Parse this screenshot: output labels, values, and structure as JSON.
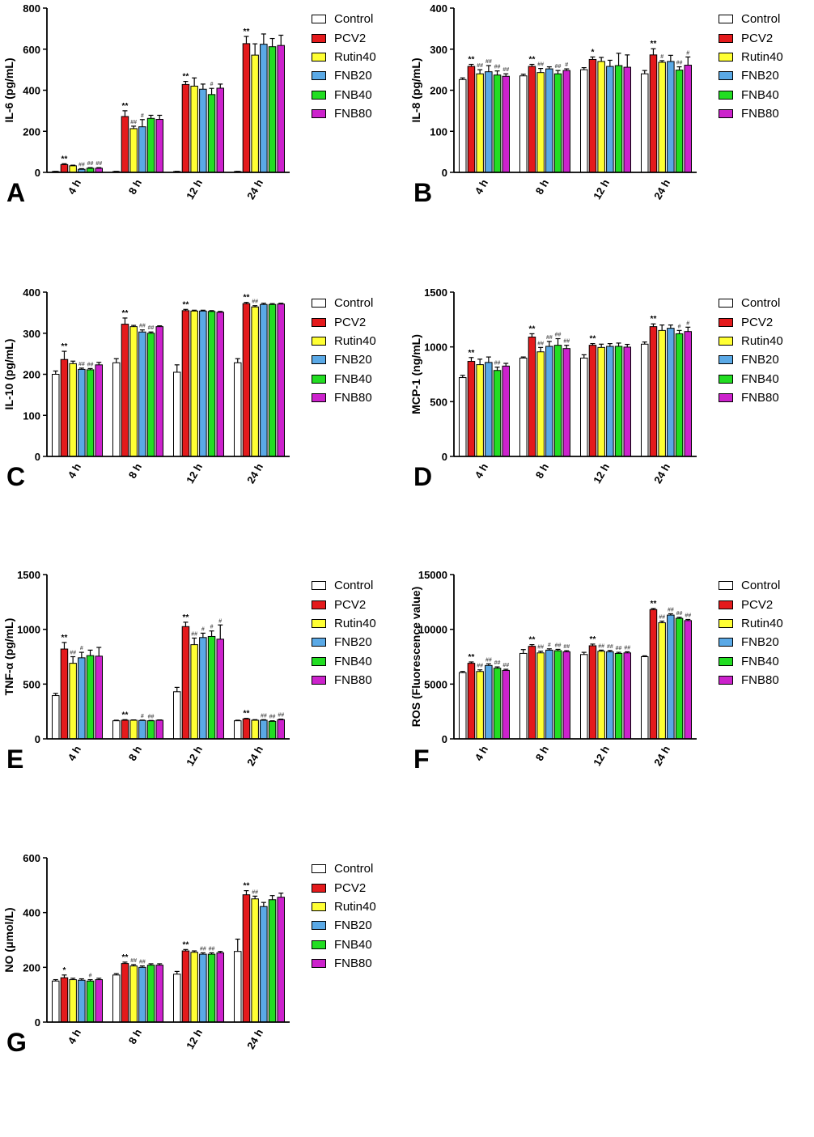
{
  "legend": {
    "groups": [
      "Control",
      "PCV2",
      "Rutin40",
      "FNB20",
      "FNB40",
      "FNB80"
    ],
    "colors": [
      "#ffffff",
      "#e41a1c",
      "#ffff33",
      "#5aa9e6",
      "#22dd22",
      "#cc22cc"
    ]
  },
  "chart_data": [
    {
      "type": "bar",
      "panel_label": "A",
      "ylabel": "IL-6 (pg/mL)",
      "ylim": [
        0,
        800
      ],
      "yticks": [
        0,
        200,
        400,
        600,
        800
      ],
      "categories": [
        "4 h",
        "8 h",
        "12 h",
        "24 h"
      ],
      "series": [
        {
          "name": "Control",
          "values": [
            4,
            4,
            4,
            4
          ],
          "errors": [
            1,
            1,
            1,
            1
          ],
          "marks": [
            "",
            "",
            "",
            ""
          ]
        },
        {
          "name": "PCV2",
          "values": [
            38,
            272,
            428,
            627
          ],
          "errors": [
            4,
            28,
            15,
            35
          ],
          "marks": [
            "**",
            "**",
            "**",
            "**"
          ]
        },
        {
          "name": "Rutin40",
          "values": [
            32,
            213,
            420,
            571
          ],
          "errors": [
            3,
            12,
            40,
            55
          ],
          "marks": [
            "",
            "##",
            "",
            ""
          ]
        },
        {
          "name": "FNB20",
          "values": [
            15,
            222,
            405,
            624
          ],
          "errors": [
            3,
            35,
            25,
            50
          ],
          "marks": [
            "##",
            "#",
            "",
            ""
          ]
        },
        {
          "name": "FNB40",
          "values": [
            20,
            263,
            379,
            612
          ],
          "errors": [
            3,
            15,
            30,
            40
          ],
          "marks": [
            "##",
            "",
            "#",
            ""
          ]
        },
        {
          "name": "FNB80",
          "values": [
            20,
            258,
            410,
            618
          ],
          "errors": [
            3,
            20,
            20,
            50
          ],
          "marks": [
            "##",
            "",
            "",
            ""
          ]
        }
      ]
    },
    {
      "type": "bar",
      "panel_label": "B",
      "ylabel": "IL-8 (pg/mL)",
      "ylim": [
        0,
        400
      ],
      "yticks": [
        0,
        100,
        200,
        300,
        400
      ],
      "categories": [
        "4 h",
        "8 h",
        "12 h",
        "24 h"
      ],
      "series": [
        {
          "name": "Control",
          "values": [
            226,
            235,
            250,
            240
          ],
          "errors": [
            4,
            4,
            5,
            8
          ],
          "marks": [
            "",
            "",
            "",
            ""
          ]
        },
        {
          "name": "PCV2",
          "values": [
            258,
            258,
            275,
            286
          ],
          "errors": [
            5,
            5,
            6,
            15
          ],
          "marks": [
            "**",
            "**",
            "*",
            "**"
          ]
        },
        {
          "name": "Rutin40",
          "values": [
            240,
            243,
            270,
            268
          ],
          "errors": [
            10,
            10,
            10,
            4
          ],
          "marks": [
            "##",
            "##",
            "",
            "#"
          ]
        },
        {
          "name": "FNB20",
          "values": [
            245,
            252,
            258,
            270
          ],
          "errors": [
            15,
            5,
            15,
            15
          ],
          "marks": [
            "##",
            "",
            "",
            ""
          ]
        },
        {
          "name": "FNB40",
          "values": [
            237,
            240,
            260,
            249
          ],
          "errors": [
            10,
            8,
            30,
            8
          ],
          "marks": [
            "##",
            "##",
            "",
            "##"
          ]
        },
        {
          "name": "FNB80",
          "values": [
            234,
            248,
            256,
            261
          ],
          "errors": [
            6,
            4,
            30,
            20
          ],
          "marks": [
            "##",
            "#",
            "",
            "#"
          ]
        }
      ]
    },
    {
      "type": "bar",
      "panel_label": "C",
      "ylabel": "IL-10 (pg/mL)",
      "ylim": [
        0,
        400
      ],
      "yticks": [
        0,
        100,
        200,
        300,
        400
      ],
      "categories": [
        "4 h",
        "8 h",
        "12 h",
        "24 h"
      ],
      "series": [
        {
          "name": "Control",
          "values": [
            200,
            228,
            205,
            228
          ],
          "errors": [
            8,
            10,
            18,
            10
          ],
          "marks": [
            "",
            "",
            "",
            ""
          ]
        },
        {
          "name": "PCV2",
          "values": [
            236,
            322,
            355,
            372
          ],
          "errors": [
            20,
            15,
            3,
            3
          ],
          "marks": [
            "**",
            "**",
            "**",
            "**"
          ]
        },
        {
          "name": "Rutin40",
          "values": [
            226,
            316,
            354,
            364
          ],
          "errors": [
            6,
            3,
            2,
            3
          ],
          "marks": [
            "",
            "",
            "",
            "##"
          ]
        },
        {
          "name": "FNB20",
          "values": [
            212,
            303,
            354,
            370
          ],
          "errors": [
            3,
            5,
            2,
            3
          ],
          "marks": [
            "##",
            "##",
            "",
            ""
          ]
        },
        {
          "name": "FNB40",
          "values": [
            211,
            300,
            353,
            370
          ],
          "errors": [
            3,
            3,
            2,
            2
          ],
          "marks": [
            "##",
            "##",
            "",
            ""
          ]
        },
        {
          "name": "FNB80",
          "values": [
            223,
            316,
            351,
            371
          ],
          "errors": [
            6,
            2,
            2,
            2
          ],
          "marks": [
            "",
            "",
            "",
            ""
          ]
        }
      ]
    },
    {
      "type": "bar",
      "panel_label": "D",
      "ylabel": "MCP-1 (ng/mL)",
      "ylim": [
        0,
        1500
      ],
      "yticks": [
        0,
        500,
        1000,
        1500
      ],
      "categories": [
        "4 h",
        "8 h",
        "12 h",
        "24 h"
      ],
      "series": [
        {
          "name": "Control",
          "values": [
            720,
            898,
            898,
            1025
          ],
          "errors": [
            20,
            10,
            30,
            20
          ],
          "marks": [
            "",
            "",
            "",
            ""
          ]
        },
        {
          "name": "PCV2",
          "values": [
            868,
            1090,
            1015,
            1185
          ],
          "errors": [
            35,
            30,
            15,
            25
          ],
          "marks": [
            "**",
            "**",
            "**",
            "**"
          ]
        },
        {
          "name": "Rutin40",
          "values": [
            838,
            955,
            995,
            1150
          ],
          "errors": [
            50,
            40,
            30,
            50
          ],
          "marks": [
            "",
            "##",
            "",
            ""
          ]
        },
        {
          "name": "FNB20",
          "values": [
            858,
            1005,
            1005,
            1170
          ],
          "errors": [
            50,
            45,
            25,
            30
          ],
          "marks": [
            "",
            "##",
            "",
            ""
          ]
        },
        {
          "name": "FNB40",
          "values": [
            785,
            1015,
            1005,
            1120
          ],
          "errors": [
            30,
            60,
            30,
            30
          ],
          "marks": [
            "##",
            "##",
            "",
            "#"
          ]
        },
        {
          "name": "FNB80",
          "values": [
            825,
            985,
            998,
            1140
          ],
          "errors": [
            25,
            30,
            25,
            40
          ],
          "marks": [
            "",
            "##",
            "",
            "#"
          ]
        }
      ]
    },
    {
      "type": "bar",
      "panel_label": "E",
      "ylabel": "TNF-α (pg/mL)",
      "ylim": [
        0,
        1500
      ],
      "yticks": [
        0,
        500,
        1000,
        1500
      ],
      "categories": [
        "4 h",
        "8 h",
        "12 h",
        "24 h"
      ],
      "series": [
        {
          "name": "Control",
          "values": [
            395,
            165,
            430,
            165
          ],
          "errors": [
            20,
            5,
            40,
            5
          ],
          "marks": [
            "",
            "",
            "",
            ""
          ]
        },
        {
          "name": "PCV2",
          "values": [
            820,
            170,
            1025,
            182
          ],
          "errors": [
            60,
            5,
            40,
            5
          ],
          "marks": [
            "**",
            "**",
            "**",
            "**"
          ]
        },
        {
          "name": "Rutin40",
          "values": [
            690,
            170,
            860,
            170
          ],
          "errors": [
            60,
            3,
            60,
            5
          ],
          "marks": [
            "##",
            "",
            "##",
            ""
          ]
        },
        {
          "name": "FNB20",
          "values": [
            740,
            168,
            925,
            170
          ],
          "errors": [
            50,
            3,
            40,
            5
          ],
          "marks": [
            "#",
            "#",
            "#",
            "##"
          ]
        },
        {
          "name": "FNB40",
          "values": [
            760,
            165,
            935,
            160
          ],
          "errors": [
            50,
            3,
            50,
            5
          ],
          "marks": [
            "",
            "##",
            "#",
            "##"
          ]
        },
        {
          "name": "FNB80",
          "values": [
            755,
            170,
            910,
            175
          ],
          "errors": [
            80,
            3,
            130,
            5
          ],
          "marks": [
            "",
            "",
            "#",
            "##"
          ]
        }
      ]
    },
    {
      "type": "bar",
      "panel_label": "F",
      "ylabel": "ROS (Fluorescence value)",
      "ylim": [
        0,
        15000
      ],
      "yticks": [
        0,
        5000,
        10000,
        15000
      ],
      "categories": [
        "4 h",
        "8 h",
        "12 h",
        "24 h"
      ],
      "series": [
        {
          "name": "Control",
          "values": [
            6050,
            7800,
            7700,
            7500
          ],
          "errors": [
            100,
            350,
            200,
            80
          ],
          "marks": [
            "",
            "",
            "",
            ""
          ]
        },
        {
          "name": "PCV2",
          "values": [
            6900,
            8450,
            8500,
            11800
          ],
          "errors": [
            120,
            150,
            150,
            100
          ],
          "marks": [
            "**",
            "**",
            "**",
            "**"
          ]
        },
        {
          "name": "Rutin40",
          "values": [
            6150,
            7850,
            8000,
            10600
          ],
          "errors": [
            150,
            150,
            100,
            150
          ],
          "marks": [
            "##",
            "##",
            "##",
            "##"
          ]
        },
        {
          "name": "FNB20",
          "values": [
            6700,
            8100,
            7950,
            11300
          ],
          "errors": [
            150,
            120,
            120,
            120
          ],
          "marks": [
            "##",
            "#",
            "##",
            "##"
          ]
        },
        {
          "name": "FNB40",
          "values": [
            6450,
            8050,
            7800,
            11000
          ],
          "errors": [
            120,
            120,
            100,
            100
          ],
          "marks": [
            "##",
            "##",
            "##",
            "##"
          ]
        },
        {
          "name": "FNB80",
          "values": [
            6250,
            7950,
            7850,
            10800
          ],
          "errors": [
            100,
            100,
            100,
            100
          ],
          "marks": [
            "##",
            "##",
            "##",
            "##"
          ]
        }
      ]
    },
    {
      "type": "bar",
      "panel_label": "G",
      "ylabel": "NO (μmol/L)",
      "ylim": [
        0,
        600
      ],
      "yticks": [
        0,
        200,
        400,
        600
      ],
      "categories": [
        "4 h",
        "8 h",
        "12 h",
        "24 h"
      ],
      "series": [
        {
          "name": "Control",
          "values": [
            150,
            172,
            175,
            258
          ],
          "errors": [
            5,
            5,
            10,
            45
          ],
          "marks": [
            "",
            "",
            "",
            ""
          ]
        },
        {
          "name": "PCV2",
          "values": [
            162,
            214,
            260,
            465
          ],
          "errors": [
            10,
            5,
            5,
            15
          ],
          "marks": [
            "*",
            "**",
            "**",
            "**"
          ]
        },
        {
          "name": "Rutin40",
          "values": [
            155,
            205,
            255,
            450
          ],
          "errors": [
            5,
            5,
            5,
            10
          ],
          "marks": [
            "",
            "##",
            "",
            "##"
          ]
        },
        {
          "name": "FNB20",
          "values": [
            153,
            200,
            248,
            422
          ],
          "errors": [
            5,
            5,
            5,
            15
          ],
          "marks": [
            "",
            "##",
            "##",
            ""
          ]
        },
        {
          "name": "FNB40",
          "values": [
            150,
            208,
            248,
            447
          ],
          "errors": [
            5,
            5,
            5,
            15
          ],
          "marks": [
            "#",
            "",
            "##",
            ""
          ]
        },
        {
          "name": "FNB80",
          "values": [
            155,
            208,
            253,
            456
          ],
          "errors": [
            5,
            5,
            5,
            15
          ],
          "marks": [
            "",
            "",
            "",
            ""
          ]
        }
      ]
    }
  ]
}
